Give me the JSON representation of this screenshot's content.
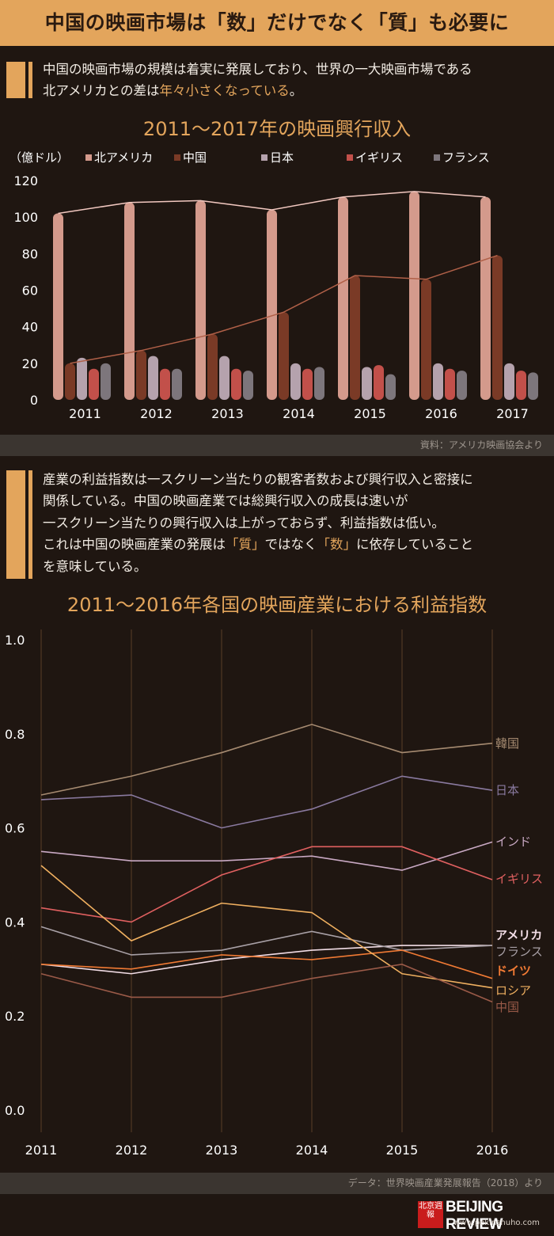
{
  "banner": {
    "title": "中国の映画市場は「数」だけでなく「質」も必要に"
  },
  "intro1": {
    "line1": "中国の映画市場の規模は着実に発展しており、世界の一大映画市場である",
    "line2_a": "北アメリカとの差は",
    "line2_accent": "年々小さくなっている",
    "line2_b": "。"
  },
  "intro2": {
    "line1": "産業の利益指数は一スクリーン当たりの観客者数および興行収入と密接に",
    "line2": "関係している。中国の映画産業では総興行収入の成長は速いが",
    "line3": "一スクリーン当たりの興行収入は上がっておらず、利益指数は低い。",
    "line4_a": "これは中国の映画産業の発展は",
    "line4_q": "「質」",
    "line4_b": "ではなく",
    "line4_n": "「数」",
    "line4_c": "に依存していること",
    "line5": "を意味している。"
  },
  "source1": "資料：アメリカ映画協会より",
  "source2": "データ：世界映画産業発展報告（2018）より",
  "logo": {
    "chinese": "北京週報",
    "name": "BEIJING REVIEW",
    "url": "www.pekinshuho.com"
  },
  "colors": {
    "accent": "#e3a55c",
    "background": "#1f1611"
  },
  "chart_data": [
    {
      "type": "bar",
      "title": "2011〜2017年の映画興行収入",
      "ylabel": "（億ドル）",
      "ylim": [
        0,
        120
      ],
      "yticks": [
        0,
        20,
        40,
        60,
        80,
        100,
        120
      ],
      "categories": [
        "2011",
        "2012",
        "2013",
        "2014",
        "2015",
        "2016",
        "2017"
      ],
      "trend_lines": [
        "北アメリカ",
        "中国"
      ],
      "series": [
        {
          "name": "北アメリカ",
          "color": "#d49a8c",
          "values": [
            102,
            108,
            109,
            104,
            111,
            114,
            111
          ]
        },
        {
          "name": "中国",
          "color": "#7a3a26",
          "values": [
            20,
            27,
            36,
            48,
            68,
            66,
            79
          ]
        },
        {
          "name": "日本",
          "color": "#b5a2ad",
          "values": [
            23,
            24,
            24,
            20,
            18,
            20,
            20
          ]
        },
        {
          "name": "イギリス",
          "color": "#c2504a",
          "values": [
            17,
            17,
            17,
            17,
            19,
            17,
            16
          ]
        },
        {
          "name": "フランス",
          "color": "#7d767c",
          "values": [
            20,
            17,
            16,
            18,
            14,
            16,
            15
          ]
        }
      ]
    },
    {
      "type": "line",
      "title": "2011〜2016年各国の映画産業における利益指数",
      "ylim": [
        0,
        1.0
      ],
      "yticks": [
        "0.0",
        "0.2",
        "0.4",
        "0.6",
        "0.8",
        "1.0"
      ],
      "x": [
        "2011",
        "2012",
        "2013",
        "2014",
        "2015",
        "2016"
      ],
      "series": [
        {
          "name": "韓国",
          "color": "#a68b71",
          "values": [
            0.67,
            0.71,
            0.76,
            0.82,
            0.76,
            0.78
          ]
        },
        {
          "name": "日本",
          "color": "#8a7aa0",
          "values": [
            0.66,
            0.67,
            0.6,
            0.64,
            0.71,
            0.68
          ]
        },
        {
          "name": "インド",
          "color": "#c9a9c4",
          "values": [
            0.55,
            0.53,
            0.53,
            0.54,
            0.51,
            0.57
          ]
        },
        {
          "name": "イギリス",
          "color": "#e06060",
          "values": [
            0.43,
            0.4,
            0.5,
            0.56,
            0.56,
            0.49
          ]
        },
        {
          "name": "アメリカ",
          "color": "#f2dde6",
          "values": [
            0.31,
            0.29,
            0.32,
            0.34,
            0.35,
            0.35
          ]
        },
        {
          "name": "フランス",
          "color": "#a8a0a6",
          "values": [
            0.39,
            0.33,
            0.34,
            0.38,
            0.34,
            0.35
          ]
        },
        {
          "name": "ドイツ",
          "color": "#f07a34",
          "values": [
            0.31,
            0.3,
            0.33,
            0.32,
            0.34,
            0.28
          ]
        },
        {
          "name": "ロシア",
          "color": "#f0b060",
          "values": [
            0.52,
            0.36,
            0.44,
            0.42,
            0.29,
            0.26
          ]
        },
        {
          "name": "中国",
          "color": "#9a5a48",
          "values": [
            0.29,
            0.24,
            0.24,
            0.28,
            0.31,
            0.23
          ]
        }
      ]
    }
  ]
}
